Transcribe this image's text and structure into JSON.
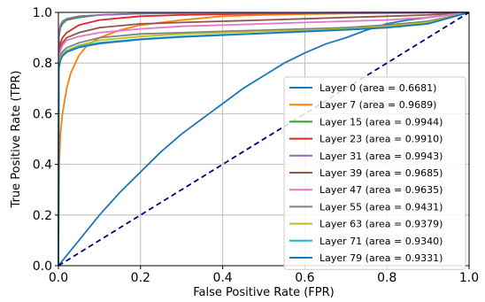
{
  "chart_data": {
    "type": "line",
    "xlabel": "False Positive Rate (FPR)",
    "ylabel": "True Positive Rate (TPR)",
    "xlim": [
      0.0,
      1.0
    ],
    "ylim": [
      0.0,
      1.0
    ],
    "x_ticks": [
      "0.0",
      "0.2",
      "0.4",
      "0.6",
      "0.8",
      "1.0"
    ],
    "y_ticks": [
      "0.0",
      "0.2",
      "0.4",
      "0.6",
      "0.8",
      "1.0"
    ],
    "grid": true,
    "legend_position": "lower-right",
    "series": [
      {
        "name": "Layer 0 (area = 0.6681)",
        "color": "#1f77b4",
        "x": [
          0,
          0.01,
          0.05,
          0.1,
          0.15,
          0.2,
          0.25,
          0.3,
          0.35,
          0.4,
          0.45,
          0.5,
          0.55,
          0.6,
          0.65,
          0.7,
          0.75,
          0.8,
          0.85,
          0.9,
          0.95,
          1.0
        ],
        "y": [
          0,
          0.02,
          0.1,
          0.2,
          0.29,
          0.37,
          0.45,
          0.52,
          0.58,
          0.64,
          0.7,
          0.75,
          0.8,
          0.84,
          0.875,
          0.9,
          0.93,
          0.955,
          0.97,
          0.98,
          0.99,
          1.0
        ]
      },
      {
        "name": "Layer 7 (area = 0.9689)",
        "color": "#ff7f0e",
        "x": [
          0,
          0.002,
          0.005,
          0.01,
          0.02,
          0.03,
          0.05,
          0.07,
          0.1,
          0.15,
          0.2,
          0.3,
          0.4,
          0.5,
          0.6,
          0.7,
          0.8,
          0.9,
          1.0
        ],
        "y": [
          0,
          0.4,
          0.52,
          0.6,
          0.7,
          0.76,
          0.83,
          0.87,
          0.9,
          0.93,
          0.95,
          0.97,
          0.985,
          0.99,
          0.993,
          0.995,
          0.997,
          0.998,
          1.0
        ]
      },
      {
        "name": "Layer 15 (area = 0.9944)",
        "color": "#2ca02c",
        "x": [
          0,
          0.001,
          0.005,
          0.01,
          0.02,
          0.05,
          0.1,
          0.2,
          0.3,
          0.5,
          0.7,
          1.0
        ],
        "y": [
          0,
          0.9,
          0.94,
          0.955,
          0.97,
          0.98,
          0.99,
          0.995,
          0.997,
          0.998,
          0.999,
          1.0
        ]
      },
      {
        "name": "Layer 23 (area = 0.9910)",
        "color": "#d62728",
        "x": [
          0,
          0.001,
          0.005,
          0.01,
          0.02,
          0.05,
          0.1,
          0.2,
          0.3,
          0.5,
          0.7,
          1.0
        ],
        "y": [
          0,
          0.84,
          0.88,
          0.9,
          0.92,
          0.95,
          0.97,
          0.985,
          0.99,
          0.995,
          0.998,
          1.0
        ]
      },
      {
        "name": "Layer 31 (area = 0.9943)",
        "color": "#9467bd",
        "x": [
          0,
          0.001,
          0.005,
          0.01,
          0.02,
          0.05,
          0.1,
          0.2,
          0.3,
          0.5,
          0.7,
          1.0
        ],
        "y": [
          0,
          0.91,
          0.95,
          0.965,
          0.975,
          0.985,
          0.99,
          0.995,
          0.997,
          0.998,
          0.999,
          1.0
        ]
      },
      {
        "name": "Layer 39 (area = 0.9685)",
        "color": "#8c564b",
        "x": [
          0,
          0.001,
          0.005,
          0.01,
          0.02,
          0.05,
          0.1,
          0.2,
          0.3,
          0.4,
          0.5,
          0.6,
          0.7,
          0.8,
          0.9,
          1.0
        ],
        "y": [
          0,
          0.83,
          0.86,
          0.88,
          0.9,
          0.92,
          0.94,
          0.955,
          0.96,
          0.965,
          0.97,
          0.975,
          0.98,
          0.985,
          0.99,
          1.0
        ]
      },
      {
        "name": "Layer 47 (area = 0.9635)",
        "color": "#e377c2",
        "x": [
          0,
          0.001,
          0.005,
          0.01,
          0.02,
          0.05,
          0.1,
          0.2,
          0.3,
          0.4,
          0.5,
          0.6,
          0.7,
          0.8,
          0.9,
          1.0
        ],
        "y": [
          0,
          0.82,
          0.85,
          0.87,
          0.89,
          0.905,
          0.92,
          0.935,
          0.945,
          0.95,
          0.955,
          0.96,
          0.965,
          0.97,
          0.98,
          1.0
        ]
      },
      {
        "name": "Layer 55 (area = 0.9431)",
        "color": "#7f7f7f",
        "x": [
          0,
          0.001,
          0.005,
          0.01,
          0.02,
          0.05,
          0.1,
          0.2,
          0.3,
          0.4,
          0.5,
          0.6,
          0.7,
          0.8,
          0.9,
          1.0
        ],
        "y": [
          0,
          0.8,
          0.83,
          0.845,
          0.86,
          0.88,
          0.9,
          0.915,
          0.92,
          0.925,
          0.93,
          0.935,
          0.94,
          0.95,
          0.965,
          1.0
        ]
      },
      {
        "name": "Layer 63 (area = 0.9379)",
        "color": "#bcbd22",
        "x": [
          0,
          0.001,
          0.005,
          0.01,
          0.02,
          0.05,
          0.1,
          0.2,
          0.3,
          0.4,
          0.5,
          0.6,
          0.7,
          0.8,
          0.9,
          1.0
        ],
        "y": [
          0,
          0.79,
          0.82,
          0.835,
          0.85,
          0.87,
          0.89,
          0.905,
          0.915,
          0.92,
          0.925,
          0.93,
          0.935,
          0.945,
          0.96,
          1.0
        ]
      },
      {
        "name": "Layer 71 (area = 0.9340)",
        "color": "#17becf",
        "x": [
          0,
          0.001,
          0.005,
          0.01,
          0.02,
          0.05,
          0.1,
          0.2,
          0.3,
          0.4,
          0.5,
          0.6,
          0.7,
          0.8,
          0.9,
          1.0
        ],
        "y": [
          0,
          0.78,
          0.81,
          0.83,
          0.845,
          0.865,
          0.88,
          0.895,
          0.905,
          0.912,
          0.918,
          0.925,
          0.932,
          0.94,
          0.955,
          1.0
        ]
      },
      {
        "name": "Layer 79 (area = 0.9331)",
        "color": "#1f77b4",
        "x": [
          0,
          0.001,
          0.005,
          0.01,
          0.02,
          0.05,
          0.1,
          0.2,
          0.3,
          0.4,
          0.5,
          0.6,
          0.7,
          0.8,
          0.9,
          1.0
        ],
        "y": [
          0,
          0.78,
          0.81,
          0.828,
          0.843,
          0.862,
          0.877,
          0.893,
          0.903,
          0.91,
          0.917,
          0.924,
          0.931,
          0.94,
          0.955,
          1.0
        ]
      }
    ],
    "diagonal": {
      "x": [
        0,
        1
      ],
      "y": [
        0,
        1
      ],
      "color": "#000080",
      "style": "dashed"
    }
  }
}
